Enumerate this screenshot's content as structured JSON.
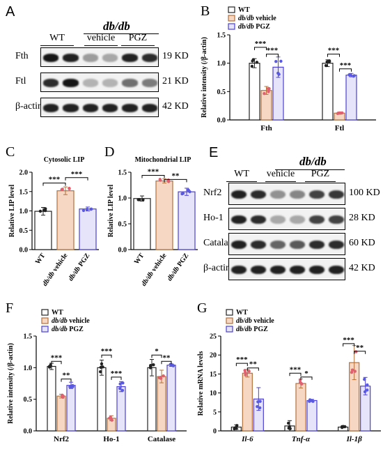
{
  "panels": {
    "A": {
      "letter": "A",
      "group_title": "db/db",
      "columns": [
        "WT",
        "vehicle",
        "PGZ"
      ],
      "rows": [
        {
          "label": "Fth",
          "size": "19 KD",
          "levels": [
            0.95,
            0.9,
            0.35,
            0.3,
            0.9,
            0.85
          ]
        },
        {
          "label": "Ftl",
          "size": "21 KD",
          "levels": [
            0.85,
            0.95,
            0.25,
            0.25,
            0.55,
            0.5
          ]
        },
        {
          "label": "β-actin",
          "size": "42 KD",
          "levels": [
            0.9,
            0.9,
            0.9,
            0.9,
            0.9,
            0.9
          ]
        }
      ]
    },
    "E": {
      "letter": "E",
      "group_title": "db/db",
      "columns": [
        "WT",
        "vehicle",
        "PGZ"
      ],
      "rows": [
        {
          "label": "Nrf2",
          "size": "100 KD",
          "levels": [
            0.9,
            0.85,
            0.4,
            0.45,
            0.75,
            0.8
          ]
        },
        {
          "label": "Ho-1",
          "size": "28 KD",
          "levels": [
            0.9,
            0.85,
            0.3,
            0.3,
            0.75,
            0.75
          ]
        },
        {
          "label": "Catalase",
          "size": "60 KD",
          "levels": [
            0.9,
            0.85,
            0.6,
            0.65,
            0.85,
            0.85
          ]
        },
        {
          "label": "β-actin",
          "size": "42 KD",
          "levels": [
            0.9,
            0.9,
            0.9,
            0.9,
            0.9,
            0.9
          ]
        }
      ]
    }
  },
  "colors": {
    "wt": "#222222",
    "vehicle": "#b4703a",
    "pgz": "#4b3fd6",
    "wt_fill": "#ffffff",
    "vehicle_fill": "#f6d7c4",
    "pgz_fill": "#e6e4fb",
    "dot_wt": "#222222",
    "dot_vehicle": "#e06070",
    "dot_pgz": "#5a5ae0"
  },
  "chart_data": [
    {
      "id": "B",
      "letter": "B",
      "type": "bar",
      "legend": [
        "WT",
        "db/db vehicle",
        "db/db PGZ"
      ],
      "ylabel": "Relative intensity (/β-actin)",
      "ylim": [
        0,
        1.5
      ],
      "yticks": [
        "0.0",
        "0.5",
        "1.0",
        "1.5"
      ],
      "categories": [
        "Fth",
        "Ftl"
      ],
      "series": [
        {
          "name": "WT",
          "values": [
            1.0,
            1.0
          ],
          "err": [
            0.08,
            0.06
          ]
        },
        {
          "name": "db/db vehicle",
          "values": [
            0.52,
            0.12
          ],
          "err": [
            0.07,
            0.02
          ]
        },
        {
          "name": "db/db PGZ",
          "values": [
            0.93,
            0.79
          ],
          "err": [
            0.18,
            0.03
          ]
        }
      ],
      "sig": [
        {
          "cat": 0,
          "a": 0,
          "b": 1,
          "label": "***",
          "y": 1.28
        },
        {
          "cat": 0,
          "a": 1,
          "b": 2,
          "label": "***",
          "y": 1.16
        },
        {
          "cat": 1,
          "a": 0,
          "b": 1,
          "label": "***",
          "y": 1.16
        },
        {
          "cat": 1,
          "a": 1,
          "b": 2,
          "label": "***",
          "y": 0.9
        }
      ]
    },
    {
      "id": "C",
      "letter": "C",
      "type": "bar",
      "title": "Cytosolic LIP",
      "ylabel": "Relative LIP level",
      "ylim": [
        0,
        2.0
      ],
      "yticks": [
        "0.0",
        "0.5",
        "1.0",
        "1.5",
        "2.0"
      ],
      "categories": [
        "WT",
        "db/db vehicle",
        "db/db PGZ"
      ],
      "series": [
        {
          "name": "",
          "values": [
            0.99,
            1.52,
            1.05
          ],
          "err": [
            0.1,
            0.1,
            0.05
          ]
        }
      ],
      "sig": [
        {
          "a": 0,
          "b": 1,
          "label": "***",
          "y": 1.72
        },
        {
          "a": 1,
          "b": 2,
          "label": "***",
          "y": 1.86
        }
      ]
    },
    {
      "id": "D",
      "letter": "D",
      "type": "bar",
      "title": "Mitochondrial LIP",
      "ylabel": "Relative LIP level",
      "ylim": [
        0,
        1.5
      ],
      "yticks": [
        "0.0",
        "0.5",
        "1.0",
        "1.5"
      ],
      "categories": [
        "WT",
        "db/db vehicle",
        "db/db PGZ"
      ],
      "series": [
        {
          "name": "",
          "values": [
            0.99,
            1.33,
            1.12
          ],
          "err": [
            0.05,
            0.04,
            0.07
          ]
        }
      ],
      "sig": [
        {
          "a": 0,
          "b": 1,
          "label": "***",
          "y": 1.44
        },
        {
          "a": 1,
          "b": 2,
          "label": "**",
          "y": 1.36
        }
      ]
    },
    {
      "id": "F",
      "letter": "F",
      "type": "bar",
      "legend": [
        "WT",
        "db/db vehicle",
        "db/db PGZ"
      ],
      "ylabel": "Relative intensity (/β-actin)",
      "ylim": [
        0,
        1.5
      ],
      "yticks": [
        "0.0",
        "0.5",
        "1.0",
        "1.5"
      ],
      "categories": [
        "Nrf2",
        "Ho-1",
        "Catalase"
      ],
      "series": [
        {
          "name": "WT",
          "values": [
            1.02,
            1.0,
            1.0
          ],
          "err": [
            0.05,
            0.12,
            0.13
          ]
        },
        {
          "name": "db/db vehicle",
          "values": [
            0.55,
            0.2,
            0.86
          ],
          "err": [
            0.03,
            0.04,
            0.1
          ]
        },
        {
          "name": "db/db PGZ",
          "values": [
            0.72,
            0.7,
            1.04
          ],
          "err": [
            0.05,
            0.08,
            0.02
          ]
        }
      ],
      "sig": [
        {
          "cat": 0,
          "a": 0,
          "b": 1,
          "label": "***",
          "y": 1.1
        },
        {
          "cat": 0,
          "a": 1,
          "b": 2,
          "label": "**",
          "y": 0.82
        },
        {
          "cat": 1,
          "a": 0,
          "b": 1,
          "label": "***",
          "y": 1.2
        },
        {
          "cat": 1,
          "a": 1,
          "b": 2,
          "label": "***",
          "y": 0.85
        },
        {
          "cat": 2,
          "a": 0,
          "b": 1,
          "label": "*",
          "y": 1.2
        },
        {
          "cat": 2,
          "a": 1,
          "b": 2,
          "label": "**",
          "y": 1.1
        }
      ]
    },
    {
      "id": "G",
      "letter": "G",
      "type": "bar",
      "legend": [
        "WT",
        "db/db vehicle",
        "db/db PGZ"
      ],
      "ylabel": "Relative mRNA levels",
      "ylim": [
        0,
        25
      ],
      "yticks": [
        "0",
        "5",
        "10",
        "15",
        "20",
        "25"
      ],
      "categories": [
        "Il-6",
        "Tnf-α",
        "Il-1β"
      ],
      "series": [
        {
          "name": "WT",
          "values": [
            1.0,
            1.3,
            1.0
          ],
          "err": [
            0.6,
            1.4,
            0.2
          ]
        },
        {
          "name": "db/db vehicle",
          "values": [
            15.2,
            12.5,
            18.0
          ],
          "err": [
            1.0,
            1.2,
            4.5
          ]
        },
        {
          "name": "db/db PGZ",
          "values": [
            8.4,
            8.0,
            11.8
          ],
          "err": [
            3.0,
            0.3,
            2.3
          ]
        }
      ],
      "sig": [
        {
          "cat": 0,
          "a": 0,
          "b": 1,
          "label": "***",
          "y": 17.8
        },
        {
          "cat": 0,
          "a": 1,
          "b": 2,
          "label": "**",
          "y": 16.6
        },
        {
          "cat": 1,
          "a": 0,
          "b": 1,
          "label": "***",
          "y": 15.2
        },
        {
          "cat": 1,
          "a": 1,
          "b": 2,
          "label": "*",
          "y": 14.2
        },
        {
          "cat": 2,
          "a": 0,
          "b": 1,
          "label": "***",
          "y": 23.0
        },
        {
          "cat": 2,
          "a": 1,
          "b": 2,
          "label": "**",
          "y": 21.0
        }
      ]
    }
  ]
}
